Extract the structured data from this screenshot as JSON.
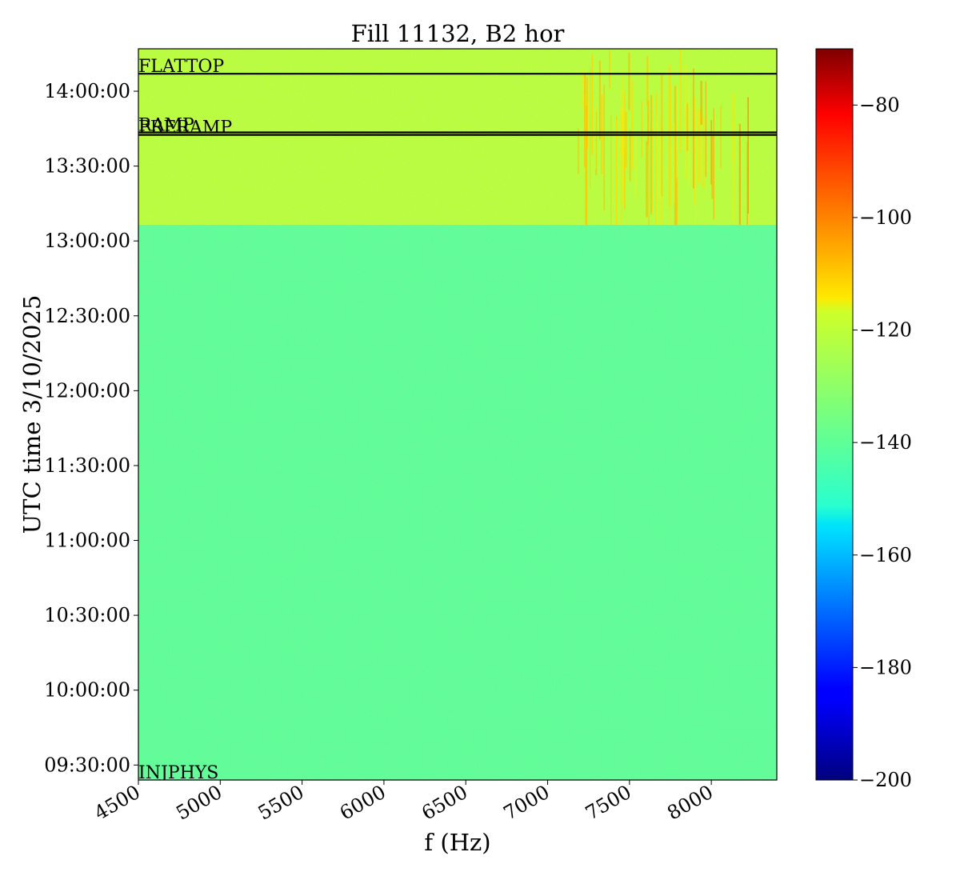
{
  "chart_data": {
    "type": "heatmap",
    "title": "Fill 11132, B2 hor",
    "xlabel": "f (Hz)",
    "ylabel": "UTC time 3/10/2025",
    "xlim": [
      4500,
      8400
    ],
    "x_ticks": [
      4500,
      5000,
      5500,
      6000,
      6500,
      7000,
      7500,
      8000
    ],
    "x_tick_labels": [
      "4500",
      "5000",
      "5500",
      "6000",
      "6500",
      "7000",
      "7500",
      "8000"
    ],
    "ylim": [
      "09:24:00",
      "14:17:00"
    ],
    "y_ticks": [
      "09:30:00",
      "10:00:00",
      "10:30:00",
      "11:00:00",
      "11:30:00",
      "12:00:00",
      "12:30:00",
      "13:00:00",
      "13:30:00",
      "14:00:00"
    ],
    "colorbar": {
      "colormap": "jet",
      "vmin": -200,
      "vmax": -70,
      "ticks": [
        -200,
        -180,
        -160,
        -140,
        -120,
        -100,
        -80
      ],
      "tick_labels": [
        "−200",
        "−180",
        "−160",
        "−140",
        "−120",
        "−100",
        "−80"
      ]
    },
    "regions": [
      {
        "start": "09:24:00",
        "end": "13:06:30",
        "level": -140
      },
      {
        "start": "13:06:30",
        "end": "14:17:00",
        "level": -121
      }
    ],
    "beam_modes": [
      {
        "label": "INJPHYS",
        "time": "09:24:00"
      },
      {
        "label": "PRERAMP",
        "time": "13:42:30"
      },
      {
        "label": "RAMP",
        "time": "13:43:30"
      },
      {
        "label": "FLATTOP",
        "time": "14:07:00"
      }
    ]
  }
}
